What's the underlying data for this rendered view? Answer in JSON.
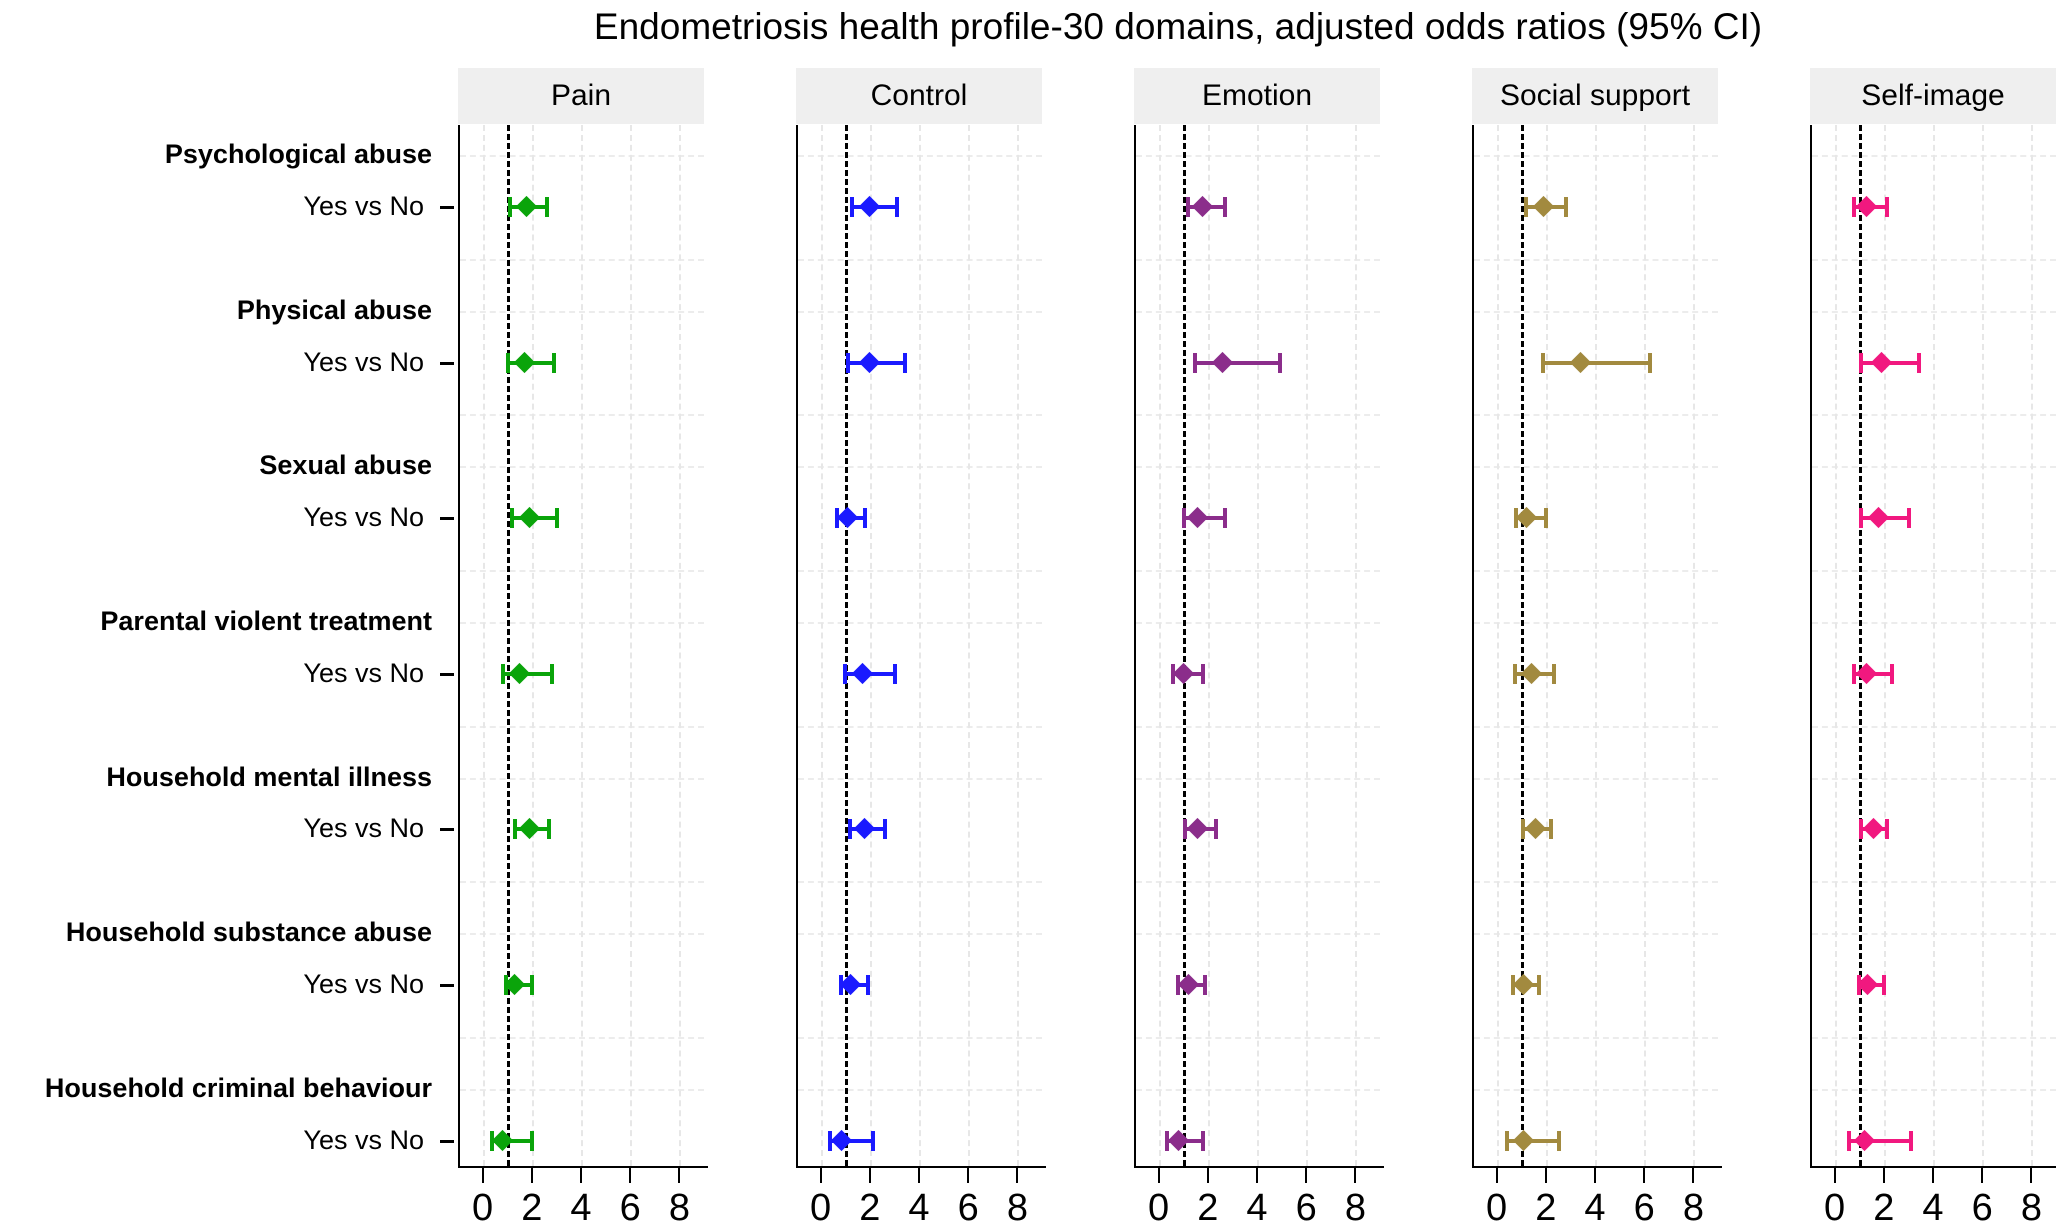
{
  "title": "Endometriosis health profile-30 domains, adjusted odds ratios (95% CI)",
  "chart_data": {
    "type": "scatter",
    "subtype": "forest-plot",
    "title": "Endometriosis health profile-30 domains, adjusted odds ratios (95% CI)",
    "xlabel": "",
    "ylabel": "",
    "x_axis": {
      "ticks": [
        0,
        2,
        4,
        6,
        8
      ],
      "range": [
        -1,
        9
      ],
      "reference_line": 1,
      "grid": "light-dashed"
    },
    "panels": [
      {
        "label": "Pain",
        "color": "#0aa40a"
      },
      {
        "label": "Control",
        "color": "#1a1aff"
      },
      {
        "label": "Emotion",
        "color": "#8b2d8b"
      },
      {
        "label": "Social support",
        "color": "#a28a3f"
      },
      {
        "label": "Self-image",
        "color": "#f1187f"
      }
    ],
    "comparison_label": "Yes vs No",
    "rows": [
      {
        "group": "Psychological abuse",
        "comparison": "Yes vs No",
        "estimates": [
          {
            "or": 1.8,
            "lo": 1.05,
            "hi": 2.7
          },
          {
            "or": 2.0,
            "lo": 1.2,
            "hi": 3.2
          },
          {
            "or": 1.8,
            "lo": 1.1,
            "hi": 2.8
          },
          {
            "or": 1.9,
            "lo": 1.1,
            "hi": 2.9
          },
          {
            "or": 1.3,
            "lo": 0.7,
            "hi": 2.2
          }
        ]
      },
      {
        "group": "Physical abuse",
        "comparison": "Yes vs No",
        "estimates": [
          {
            "or": 1.7,
            "lo": 0.95,
            "hi": 3.0
          },
          {
            "or": 2.0,
            "lo": 1.05,
            "hi": 3.5
          },
          {
            "or": 2.6,
            "lo": 1.4,
            "hi": 5.0
          },
          {
            "or": 3.4,
            "lo": 1.8,
            "hi": 6.3
          },
          {
            "or": 1.9,
            "lo": 1.0,
            "hi": 3.5
          }
        ]
      },
      {
        "group": "Sexual abuse",
        "comparison": "Yes vs No",
        "estimates": [
          {
            "or": 1.9,
            "lo": 1.1,
            "hi": 3.1
          },
          {
            "or": 1.1,
            "lo": 0.6,
            "hi": 1.9
          },
          {
            "or": 1.6,
            "lo": 0.95,
            "hi": 2.8
          },
          {
            "or": 1.2,
            "lo": 0.7,
            "hi": 2.1
          },
          {
            "or": 1.8,
            "lo": 1.0,
            "hi": 3.1
          }
        ]
      },
      {
        "group": "Parental violent treatment",
        "comparison": "Yes vs No",
        "estimates": [
          {
            "or": 1.5,
            "lo": 0.75,
            "hi": 2.9
          },
          {
            "or": 1.7,
            "lo": 0.9,
            "hi": 3.1
          },
          {
            "or": 1.0,
            "lo": 0.5,
            "hi": 1.9
          },
          {
            "or": 1.4,
            "lo": 0.65,
            "hi": 2.4
          },
          {
            "or": 1.3,
            "lo": 0.7,
            "hi": 2.4
          }
        ]
      },
      {
        "group": "Household mental illness",
        "comparison": "Yes vs No",
        "estimates": [
          {
            "or": 1.9,
            "lo": 1.25,
            "hi": 2.8
          },
          {
            "or": 1.8,
            "lo": 1.1,
            "hi": 2.7
          },
          {
            "or": 1.6,
            "lo": 1.0,
            "hi": 2.4
          },
          {
            "or": 1.6,
            "lo": 1.0,
            "hi": 2.3
          },
          {
            "or": 1.6,
            "lo": 1.0,
            "hi": 2.2
          }
        ]
      },
      {
        "group": "Household substance abuse",
        "comparison": "Yes vs No",
        "estimates": [
          {
            "or": 1.3,
            "lo": 0.85,
            "hi": 2.1
          },
          {
            "or": 1.2,
            "lo": 0.75,
            "hi": 2.0
          },
          {
            "or": 1.2,
            "lo": 0.7,
            "hi": 1.95
          },
          {
            "or": 1.1,
            "lo": 0.6,
            "hi": 1.8
          },
          {
            "or": 1.35,
            "lo": 0.9,
            "hi": 2.1
          }
        ]
      },
      {
        "group": "Household criminal behaviour",
        "comparison": "Yes vs No",
        "estimates": [
          {
            "or": 0.8,
            "lo": 0.3,
            "hi": 2.1
          },
          {
            "or": 0.85,
            "lo": 0.3,
            "hi": 2.2
          },
          {
            "or": 0.8,
            "lo": 0.25,
            "hi": 1.9
          },
          {
            "or": 1.1,
            "lo": 0.35,
            "hi": 2.6
          },
          {
            "or": 1.2,
            "lo": 0.5,
            "hi": 3.2
          }
        ]
      }
    ]
  }
}
